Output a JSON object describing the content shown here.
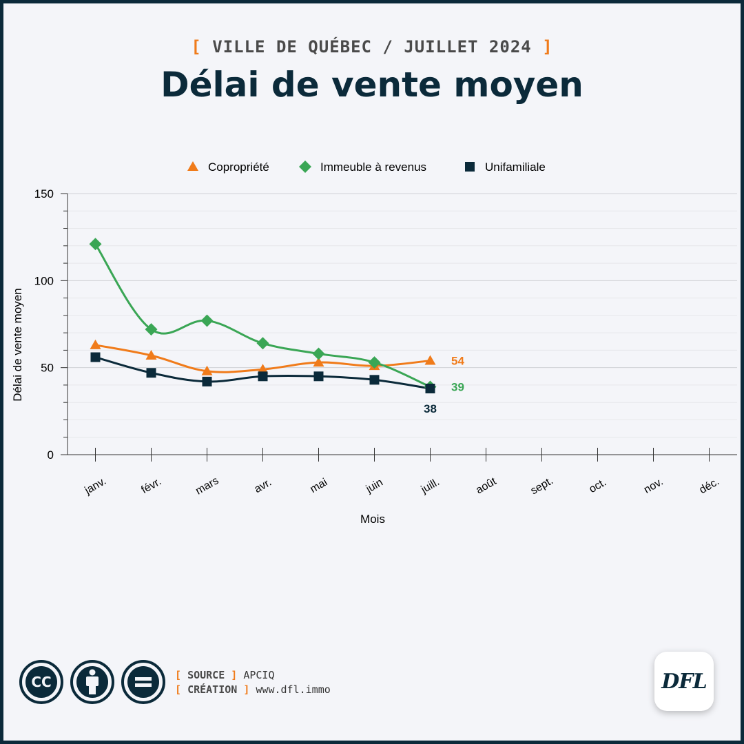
{
  "header": {
    "supertitle_open": "[",
    "supertitle_text": "VILLE DE QUÉBEC / JUILLET 2024",
    "supertitle_close": "]",
    "title": "Délai de vente moyen"
  },
  "colors": {
    "background": "#f4f5f9",
    "frame": "#0b2a3a",
    "accent": "#f07b1a",
    "copropriete": "#f07b1a",
    "immeuble": "#3aa655",
    "unifamiliale": "#0b2a3a"
  },
  "chart_data": {
    "type": "line",
    "title": "",
    "xlabel": "Mois",
    "ylabel": "Délai de vente moyen",
    "ylim": [
      0,
      150
    ],
    "yticks": [
      0,
      50,
      100,
      150
    ],
    "grid": true,
    "legend_position": "top-center",
    "categories": [
      "janv.",
      "févr.",
      "mars",
      "avr.",
      "mai",
      "juin",
      "juill.",
      "août",
      "sept.",
      "oct.",
      "nov.",
      "déc."
    ],
    "series": [
      {
        "name": "Copropriété",
        "marker": "triangle",
        "color": "#f07b1a",
        "values": [
          63,
          57,
          48,
          49,
          53,
          51,
          54,
          null,
          null,
          null,
          null,
          null
        ],
        "end_label": "54"
      },
      {
        "name": "Immeuble à revenus",
        "marker": "diamond",
        "color": "#3aa655",
        "values": [
          121,
          72,
          77,
          64,
          58,
          53,
          39,
          null,
          null,
          null,
          null,
          null
        ],
        "end_label": "39"
      },
      {
        "name": "Unifamiliale",
        "marker": "square",
        "color": "#0b2a3a",
        "values": [
          56,
          47,
          42,
          45,
          45,
          43,
          38,
          null,
          null,
          null,
          null,
          null
        ],
        "end_label": "38"
      }
    ]
  },
  "footer": {
    "icons": [
      "cc-icon",
      "attribution-icon",
      "no-derivatives-icon"
    ],
    "cc_text": "CC",
    "source_label": "SOURCE",
    "source_value": "APCIQ",
    "creation_label": "CRÉATION",
    "creation_value": "www.dfl.immo",
    "logo_text": "DFL"
  }
}
